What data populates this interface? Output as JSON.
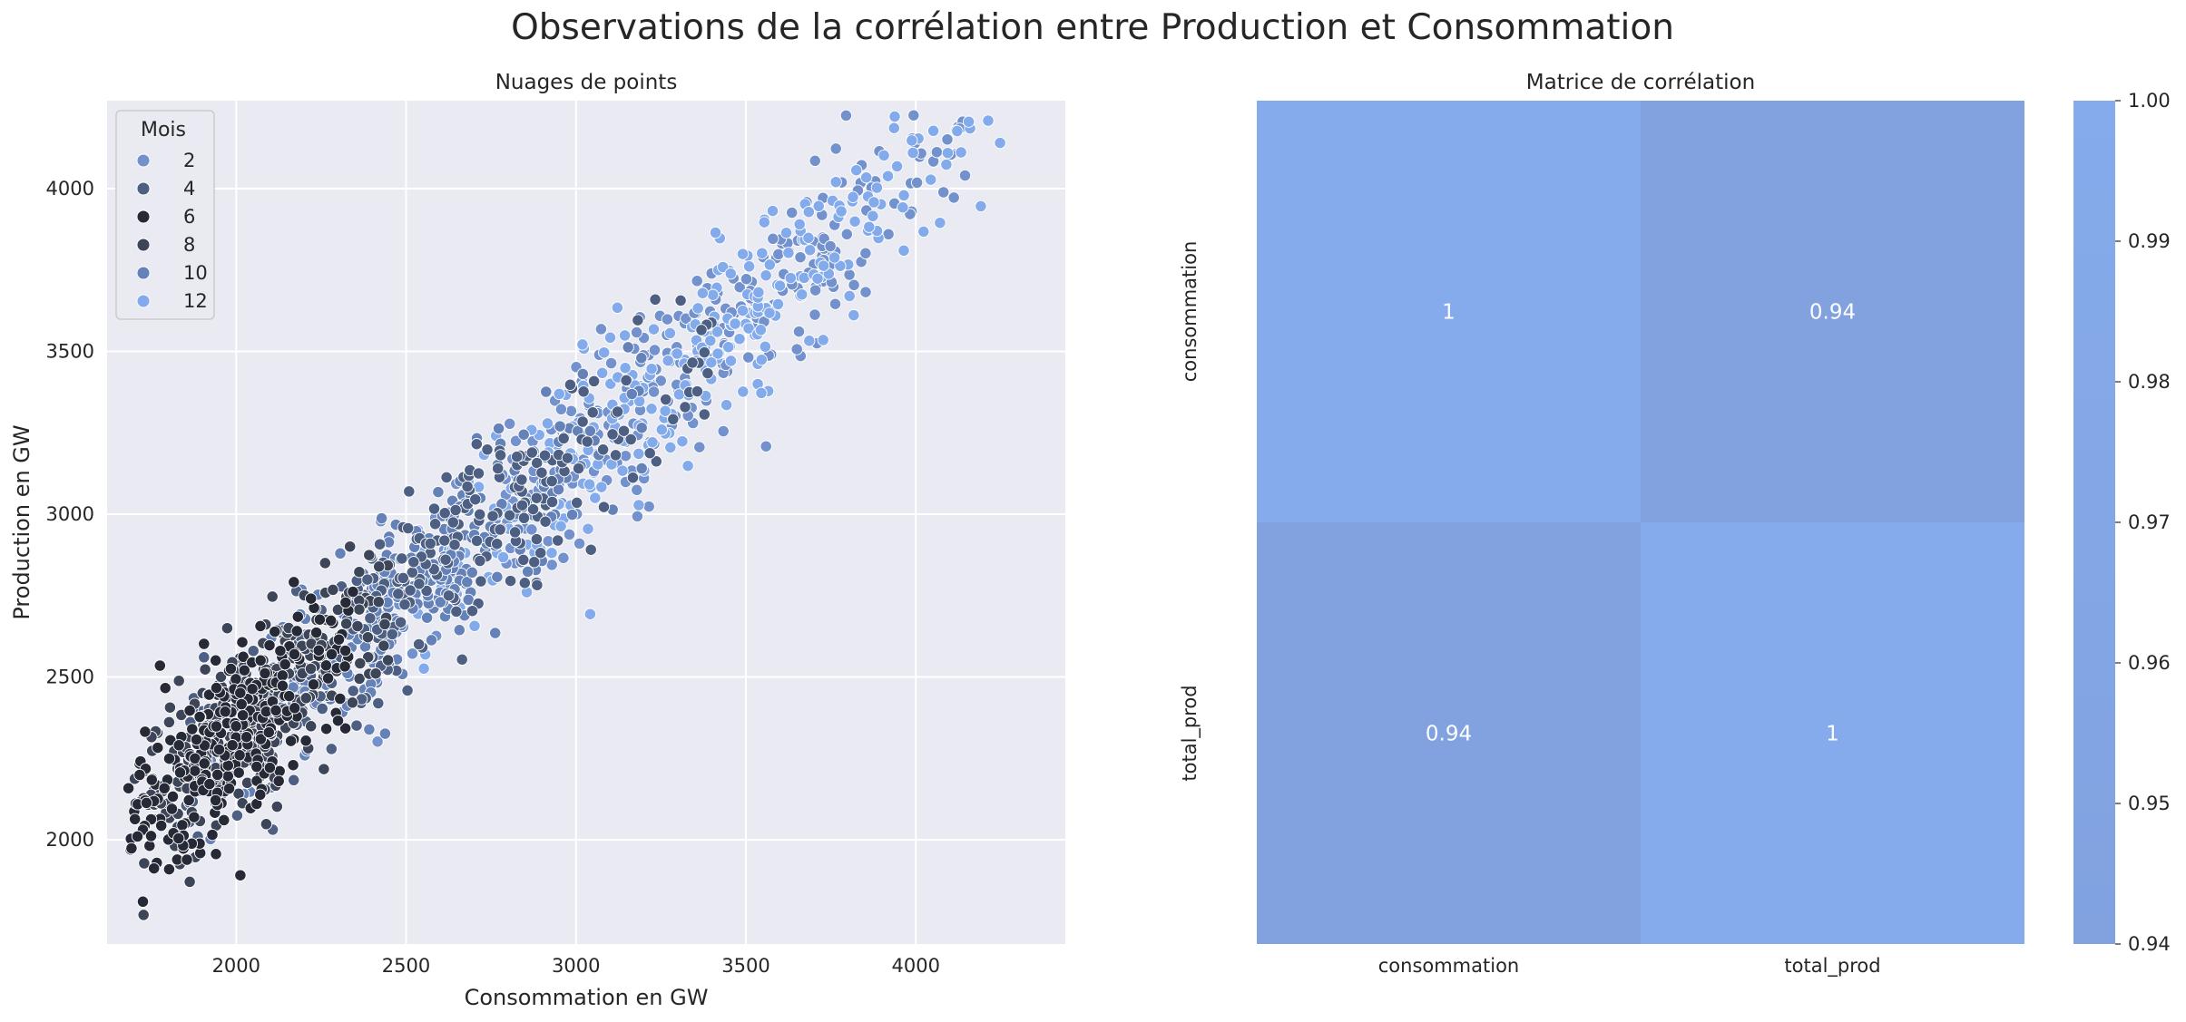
{
  "figure": {
    "suptitle": "Observations de la corrélation entre Production et Consommation"
  },
  "chart_data": [
    {
      "type": "scatter",
      "title": "Nuages de points",
      "xlabel": "Consommation en GW",
      "ylabel": "Production en GW",
      "xlim": [
        1620,
        4440
      ],
      "ylim": [
        1680,
        4270
      ],
      "xticks": [
        2000,
        2500,
        3000,
        3500,
        4000
      ],
      "yticks": [
        2000,
        2500,
        3000,
        3500,
        4000
      ],
      "grid": true,
      "legend": {
        "title": "Mois",
        "placement": "top-left",
        "entries": [
          {
            "label": "2",
            "color": "#7391cc"
          },
          {
            "label": "4",
            "color": "#4d5f82"
          },
          {
            "label": "6",
            "color": "#262a36"
          },
          {
            "label": "8",
            "color": "#3d4559"
          },
          {
            "label": "10",
            "color": "#6481b8"
          },
          {
            "label": "12",
            "color": "#83aaea"
          }
        ]
      },
      "hue": "Mois",
      "point_count": 1800,
      "relationship": {
        "slope": 0.86,
        "intercept": 600,
        "residual_sd": 130
      },
      "series": [
        {
          "month_range": [
            1,
            2
          ],
          "color": "#7391cc",
          "consommation_range": [
            2400,
            4150
          ],
          "center": 3350
        },
        {
          "month_range": [
            3,
            4
          ],
          "color": "#4d5f82",
          "consommation_range": [
            1850,
            3400
          ],
          "center": 2600
        },
        {
          "month_range": [
            5,
            6
          ],
          "color": "#262a36",
          "consommation_range": [
            1680,
            2350
          ],
          "center": 2000
        },
        {
          "month_range": [
            7,
            8
          ],
          "color": "#3d4559",
          "consommation_range": [
            1700,
            2450
          ],
          "center": 2050
        },
        {
          "month_range": [
            9,
            10
          ],
          "color": "#6481b8",
          "consommation_range": [
            1900,
            3200
          ],
          "center": 2500
        },
        {
          "month_range": [
            11,
            12
          ],
          "color": "#83aaea",
          "consommation_range": [
            2500,
            4300
          ],
          "center": 3300
        }
      ]
    },
    {
      "type": "heatmap",
      "title": "Matrice de corrélation",
      "rows": [
        "consommation",
        "total_prod"
      ],
      "cols": [
        "consommation",
        "total_prod"
      ],
      "values": [
        [
          1,
          0.94
        ],
        [
          0.94,
          1
        ]
      ],
      "annotations": [
        [
          "1",
          "0.94"
        ],
        [
          "0.94",
          "1"
        ]
      ],
      "colorbar": {
        "range": [
          0.94,
          1.0
        ],
        "ticks": [
          "1.00",
          "0.99",
          "0.98",
          "0.97",
          "0.96",
          "0.95",
          "0.94"
        ],
        "color_low": "#81a2df",
        "color_high": "#85abec"
      }
    }
  ]
}
